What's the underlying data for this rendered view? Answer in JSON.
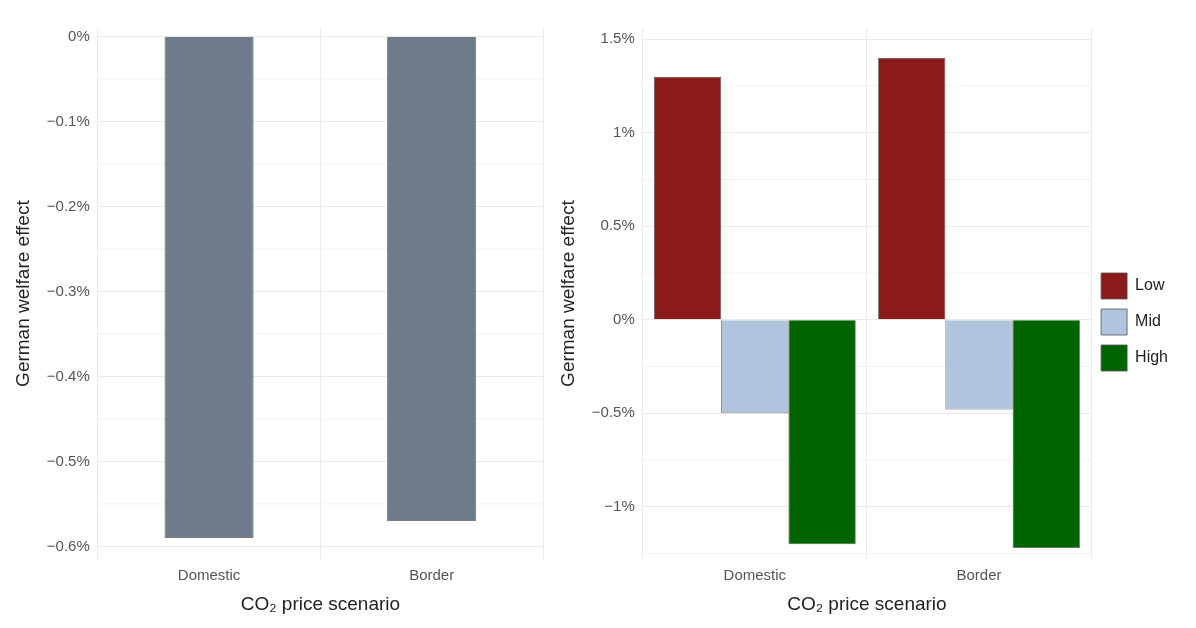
{
  "chart_data": [
    {
      "type": "bar",
      "xlabel": "CO₂ price scenario",
      "ylabel": "German welfare effect",
      "categories": [
        "Domestic",
        "Border"
      ],
      "values": [
        -0.59,
        -0.57
      ],
      "color": "#6e7b8b",
      "ylim": [
        -0.615,
        0.01
      ],
      "yticks": [
        {
          "value": 0,
          "label": "0%"
        },
        {
          "value": -0.1,
          "label": "−0.1%"
        },
        {
          "value": -0.2,
          "label": "−0.2%"
        },
        {
          "value": -0.3,
          "label": "−0.3%"
        },
        {
          "value": -0.4,
          "label": "−0.4%"
        },
        {
          "value": -0.5,
          "label": "−0.5%"
        },
        {
          "value": -0.6,
          "label": "−0.6%"
        }
      ],
      "grid": true,
      "legend": false
    },
    {
      "type": "bar",
      "xlabel": "CO₂ price scenario",
      "ylabel": "German welfare effect",
      "categories": [
        "Domestic",
        "Border"
      ],
      "series": [
        {
          "name": "Low",
          "color": "#8b1a1a",
          "values": [
            1.3,
            1.4
          ]
        },
        {
          "name": "Mid",
          "color": "#b0c4de",
          "values": [
            -0.5,
            -0.48
          ]
        },
        {
          "name": "High",
          "color": "#006400",
          "values": [
            -1.2,
            -1.22
          ]
        }
      ],
      "ylim": [
        -1.28,
        1.56
      ],
      "yticks": [
        {
          "value": -1,
          "label": "−1%"
        },
        {
          "value": -0.5,
          "label": "−0.5%"
        },
        {
          "value": 0,
          "label": "0%"
        },
        {
          "value": 0.5,
          "label": "0.5%"
        },
        {
          "value": 1,
          "label": "1%"
        },
        {
          "value": 1.5,
          "label": "1.5%"
        }
      ],
      "grid": true,
      "legend": "right"
    }
  ]
}
